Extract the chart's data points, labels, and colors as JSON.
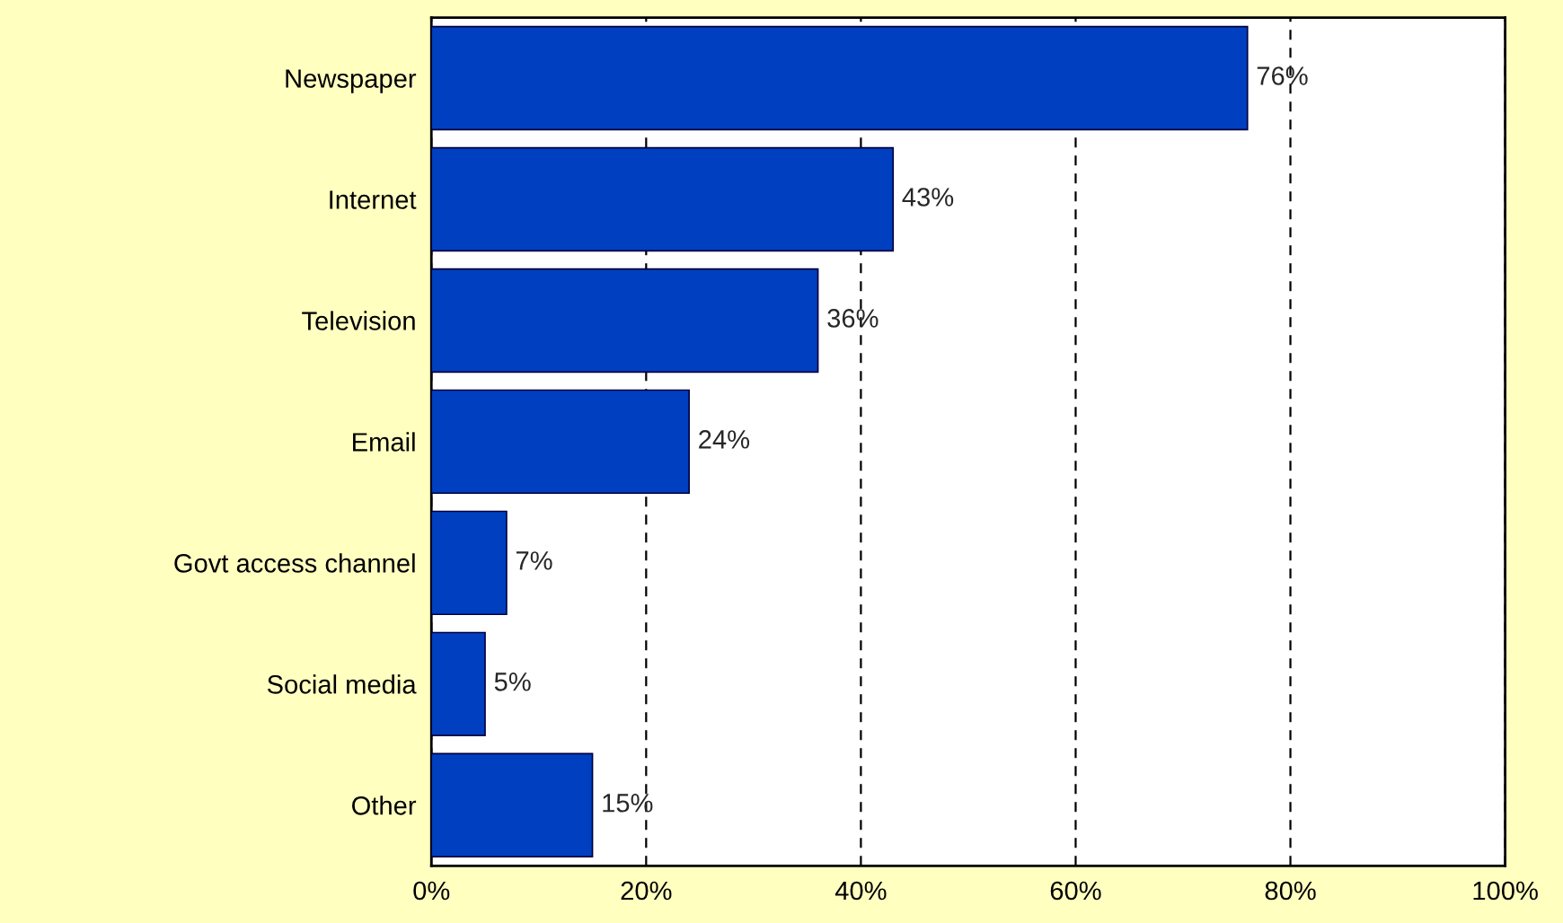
{
  "chart_data": {
    "type": "bar",
    "orientation": "horizontal",
    "categories": [
      "Newspaper",
      "Internet",
      "Television",
      "Email",
      "Govt access channel",
      "Social media",
      "Other"
    ],
    "values": [
      76,
      43,
      36,
      24,
      7,
      5,
      15
    ],
    "value_labels": [
      "76%",
      "43%",
      "36%",
      "24%",
      "7%",
      "5%",
      "15%"
    ],
    "color": "#0040c0",
    "xlim": [
      0,
      100
    ],
    "xticks": [
      {
        "value": 0,
        "label": "0%"
      },
      {
        "value": 20,
        "label": "20%"
      },
      {
        "value": 40,
        "label": "40%"
      },
      {
        "value": 60,
        "label": "60%"
      },
      {
        "value": 80,
        "label": "80%"
      },
      {
        "value": 100,
        "label": "100%"
      }
    ],
    "grid": "x"
  }
}
